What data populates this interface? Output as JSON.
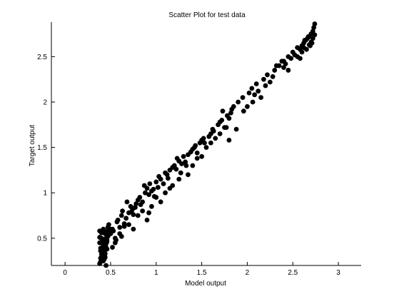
{
  "chart_data": {
    "type": "scatter",
    "title": "Scatter Plot for test data",
    "xlabel": "Model output",
    "ylabel": "Target output",
    "xlim": [
      -0.15,
      3.25
    ],
    "ylim": [
      0.2,
      2.88
    ],
    "xticks": [
      0,
      0.5,
      1,
      1.5,
      2,
      2.5,
      3
    ],
    "xtick_labels": [
      "0",
      "0.5",
      "1",
      "1.5",
      "2",
      "2.5",
      "3"
    ],
    "yticks": [
      0.5,
      1,
      1.5,
      2,
      2.5
    ],
    "ytick_labels": [
      "0.5",
      "1",
      "1.5",
      "2",
      "2.5"
    ],
    "grid": false,
    "legend": "none",
    "marker_color": "#000000",
    "series": [
      {
        "x": [
          0.38,
          0.39,
          0.4,
          0.41,
          0.42,
          0.43,
          0.44,
          0.45,
          0.38,
          0.4,
          0.42,
          0.44,
          0.46,
          0.39,
          0.41,
          0.43,
          0.45,
          0.47,
          0.38,
          0.4,
          0.42,
          0.44,
          0.39,
          0.41,
          0.43,
          0.45,
          0.4,
          0.42,
          0.44,
          0.46,
          0.48,
          0.39,
          0.41,
          0.43,
          0.45,
          0.38,
          0.4,
          0.42,
          0.44,
          0.46,
          0.41,
          0.43,
          0.45,
          0.47,
          0.5,
          0.52,
          0.55,
          0.48,
          0.53,
          0.57,
          0.6,
          0.58,
          0.62,
          0.65,
          0.63,
          0.67,
          0.7,
          0.72,
          0.68,
          0.74,
          0.75,
          0.78,
          0.8,
          0.73,
          0.77,
          0.82,
          0.85,
          0.88,
          0.83,
          0.9,
          0.92,
          0.95,
          0.87,
          0.93,
          0.97,
          1.0,
          0.98,
          1.02,
          1.05,
          1.08,
          1.03,
          1.1,
          1.12,
          1.15,
          1.18,
          1.13,
          1.2,
          1.22,
          1.25,
          1.28,
          1.23,
          1.3,
          1.32,
          1.35,
          1.38,
          1.33,
          1.4,
          1.42,
          1.45,
          1.48,
          1.43,
          1.5,
          1.52,
          1.55,
          1.58,
          1.53,
          1.6,
          1.62,
          1.65,
          1.68,
          1.63,
          1.7,
          1.72,
          1.75,
          1.78,
          1.73,
          1.8,
          1.82,
          1.85,
          1.88,
          1.83,
          1.9,
          1.95,
          2.0,
          2.02,
          2.05,
          2.08,
          2.1,
          2.12,
          2.15,
          2.18,
          2.2,
          2.22,
          2.25,
          2.28,
          2.3,
          2.35,
          2.38,
          2.4,
          2.42,
          2.45,
          2.48,
          2.5,
          2.52,
          2.55,
          2.58,
          2.6,
          2.62,
          2.64,
          2.66,
          2.68,
          2.7,
          2.72,
          2.73,
          2.74,
          2.6,
          2.62,
          2.65,
          2.68,
          2.7,
          2.72,
          2.74,
          2.63,
          2.67,
          2.71,
          0.55,
          0.6,
          0.7,
          0.8,
          0.95,
          1.1,
          1.25,
          1.4,
          1.7,
          0.9,
          1.05,
          0.5,
          0.65,
          0.85,
          1.15,
          1.35,
          1.5,
          1.8,
          2.4,
          2.55,
          0.45,
          0.47,
          0.52,
          0.56,
          0.62,
          0.75,
          0.92,
          1.0,
          1.18,
          1.27,
          1.45,
          1.6,
          1.77,
          1.96,
          2.06,
          2.32,
          2.45,
          2.58,
          2.69
        ],
        "y": [
          0.22,
          0.28,
          0.35,
          0.3,
          0.25,
          0.4,
          0.33,
          0.38,
          0.45,
          0.5,
          0.42,
          0.55,
          0.48,
          0.36,
          0.31,
          0.27,
          0.44,
          0.52,
          0.58,
          0.26,
          0.34,
          0.29,
          0.39,
          0.47,
          0.43,
          0.5,
          0.32,
          0.37,
          0.41,
          0.46,
          0.54,
          0.24,
          0.3,
          0.35,
          0.4,
          0.51,
          0.56,
          0.6,
          0.45,
          0.38,
          0.33,
          0.48,
          0.57,
          0.62,
          0.55,
          0.6,
          0.5,
          0.65,
          0.58,
          0.68,
          0.62,
          0.7,
          0.75,
          0.66,
          0.8,
          0.72,
          0.78,
          0.85,
          0.9,
          0.82,
          0.76,
          0.88,
          0.92,
          0.79,
          0.84,
          0.95,
          0.9,
          1.0,
          0.87,
          1.05,
          0.98,
          1.02,
          1.08,
          1.1,
          1.04,
          1.12,
          0.96,
          1.06,
          1.15,
          1.1,
          1.18,
          1.22,
          1.2,
          1.25,
          1.28,
          1.16,
          1.3,
          1.26,
          1.35,
          1.32,
          1.38,
          1.4,
          1.34,
          1.42,
          1.45,
          1.3,
          1.48,
          1.5,
          1.44,
          1.55,
          1.52,
          1.58,
          1.6,
          1.5,
          1.62,
          1.55,
          1.65,
          1.7,
          1.6,
          1.75,
          1.68,
          1.78,
          1.8,
          1.72,
          1.85,
          1.9,
          1.82,
          1.88,
          1.95,
          1.7,
          1.92,
          2.0,
          2.05,
          1.95,
          2.1,
          2.15,
          2.08,
          2.2,
          2.12,
          2.05,
          2.25,
          2.18,
          2.3,
          2.22,
          2.28,
          2.35,
          2.4,
          2.45,
          2.38,
          2.42,
          2.5,
          2.48,
          2.55,
          2.52,
          2.6,
          2.58,
          2.62,
          2.65,
          2.68,
          2.7,
          2.72,
          2.75,
          2.78,
          2.82,
          2.86,
          2.55,
          2.6,
          2.58,
          2.63,
          2.66,
          2.7,
          2.74,
          2.68,
          2.72,
          2.65,
          0.45,
          0.55,
          0.65,
          0.75,
          0.85,
          1.0,
          1.15,
          1.3,
          1.65,
          0.7,
          0.9,
          0.6,
          0.63,
          0.8,
          1.05,
          1.2,
          1.4,
          1.58,
          2.45,
          2.5,
          0.2,
          0.58,
          0.4,
          0.48,
          0.52,
          0.6,
          0.78,
          0.95,
          1.08,
          1.22,
          1.38,
          1.55,
          1.72,
          1.9,
          2.0,
          2.4,
          2.35,
          2.48,
          2.62
        ]
      }
    ]
  }
}
